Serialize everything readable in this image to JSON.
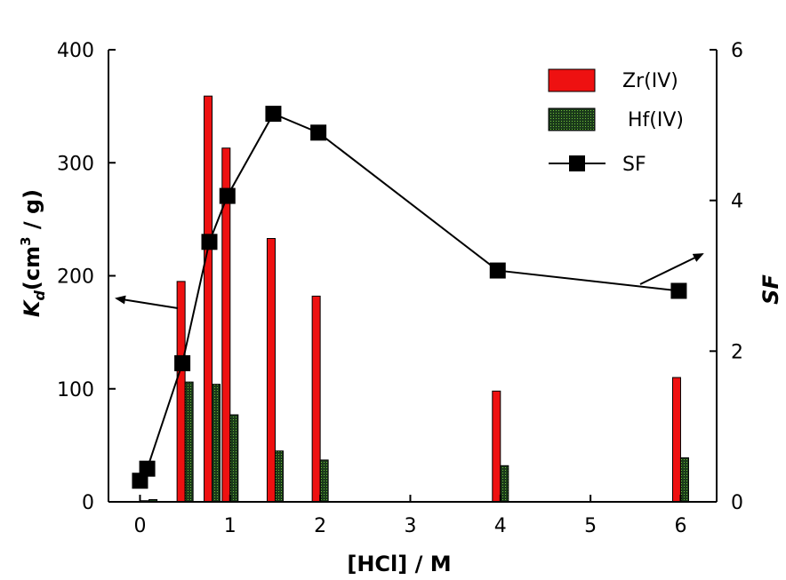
{
  "chart_data": {
    "type": "bar",
    "xlabel": "[HCl]  / M",
    "ylabel_left": {
      "main": "K",
      "sub": "d",
      "rest": "(cm",
      "sup": "3",
      "end": " / g)"
    },
    "ylabel_right": "SF",
    "xlim": [
      -0.35,
      6.4
    ],
    "ylim_left": [
      0,
      400
    ],
    "ylim_right": [
      0,
      6
    ],
    "x_ticks": [
      0,
      1,
      2,
      3,
      4,
      5,
      6
    ],
    "x_tick_labels": [
      "0",
      "1",
      "2",
      "3",
      "4",
      "5",
      "6"
    ],
    "y_left_ticks": [
      0,
      100,
      200,
      300,
      400
    ],
    "y_left_tick_labels": [
      "0",
      "100",
      "200",
      "300",
      "400"
    ],
    "y_right_ticks": [
      0,
      2,
      4,
      6
    ],
    "y_right_tick_labels": [
      "0",
      "2",
      "4",
      "6"
    ],
    "x": [
      0.1,
      0.5,
      0.8,
      1.0,
      1.5,
      2.0,
      4.0,
      6.0
    ],
    "series": [
      {
        "name": "Zr(IV)",
        "kind": "bar",
        "axis": "left",
        "color": "#ee1111",
        "values": [
          1,
          195,
          359,
          313,
          233,
          182,
          98,
          110
        ]
      },
      {
        "name": "Hf(IV)",
        "kind": "bar",
        "axis": "left",
        "color": "#1a3a1a",
        "values": [
          2,
          106,
          104,
          77,
          45,
          37,
          32,
          39
        ]
      },
      {
        "name": "SF",
        "kind": "line",
        "axis": "right",
        "color": "#000000",
        "x": [
          0.0,
          0.08,
          0.47,
          0.77,
          0.97,
          1.48,
          1.98,
          3.97,
          5.98
        ],
        "values": [
          0.28,
          0.44,
          1.84,
          3.45,
          4.06,
          5.15,
          4.9,
          3.07,
          2.8
        ]
      }
    ],
    "legend_position": "top-right",
    "grid": false
  }
}
